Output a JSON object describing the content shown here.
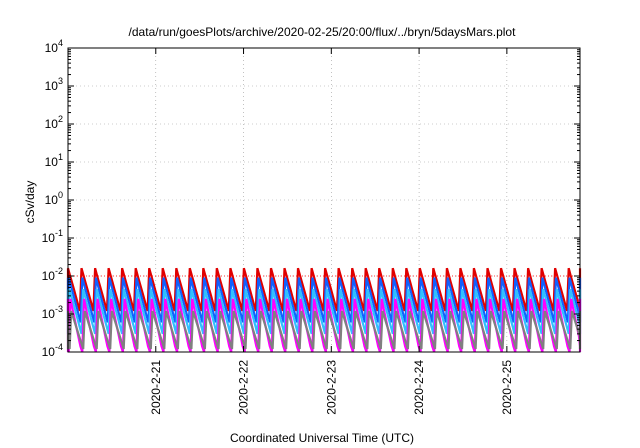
{
  "chart_data": {
    "type": "line",
    "title": "/data/run/goesPlots/archive/2020-02-25/20:00/flux/../bryn/5daysMars.plot",
    "xlabel": "Coordinated Universal Time (UTC)",
    "ylabel": "cSv/day",
    "yscale": "log",
    "ylim": [
      0.0001,
      10000
    ],
    "xlim": [
      "2020-02-20 00:00",
      "2020-02-25 20:00"
    ],
    "y_ticks": [
      {
        "base": "10",
        "exp": "-4",
        "value": 0.0001
      },
      {
        "base": "10",
        "exp": "-3",
        "value": 0.001
      },
      {
        "base": "10",
        "exp": "-2",
        "value": 0.01
      },
      {
        "base": "10",
        "exp": "-1",
        "value": 0.1
      },
      {
        "base": "10",
        "exp": "0",
        "value": 1
      },
      {
        "base": "10",
        "exp": "1",
        "value": 10
      },
      {
        "base": "10",
        "exp": "2",
        "value": 100
      },
      {
        "base": "10",
        "exp": "3",
        "value": 1000
      },
      {
        "base": "10",
        "exp": "4",
        "value": 10000
      }
    ],
    "x_ticks": [
      {
        "label": "2020-2-21",
        "value": "2020-02-21 00:00"
      },
      {
        "label": "2020-2-22",
        "value": "2020-02-22 00:00"
      },
      {
        "label": "2020-2-23",
        "value": "2020-02-23 00:00"
      },
      {
        "label": "2020-2-24",
        "value": "2020-02-24 00:00"
      },
      {
        "label": "2020-2-25",
        "value": "2020-02-25 00:00"
      }
    ],
    "grid": true,
    "reference_line": {
      "value": 0.01,
      "color": "#ff0000",
      "style": "dotted"
    },
    "cycle_hours": 3.7,
    "series": [
      {
        "color": "#e00000",
        "peak": 0.016,
        "min": 0.0012
      },
      {
        "color": "#1060ff",
        "peak": 0.009,
        "min": 0.0006
      },
      {
        "color": "#30c0ff",
        "peak": 0.0045,
        "min": 0.0003
      },
      {
        "color": "#ff00ff",
        "peak": 0.0025,
        "min": 8e-05
      },
      {
        "color": "#808080",
        "peak": 0.0012,
        "min": 0.00012
      }
    ]
  }
}
